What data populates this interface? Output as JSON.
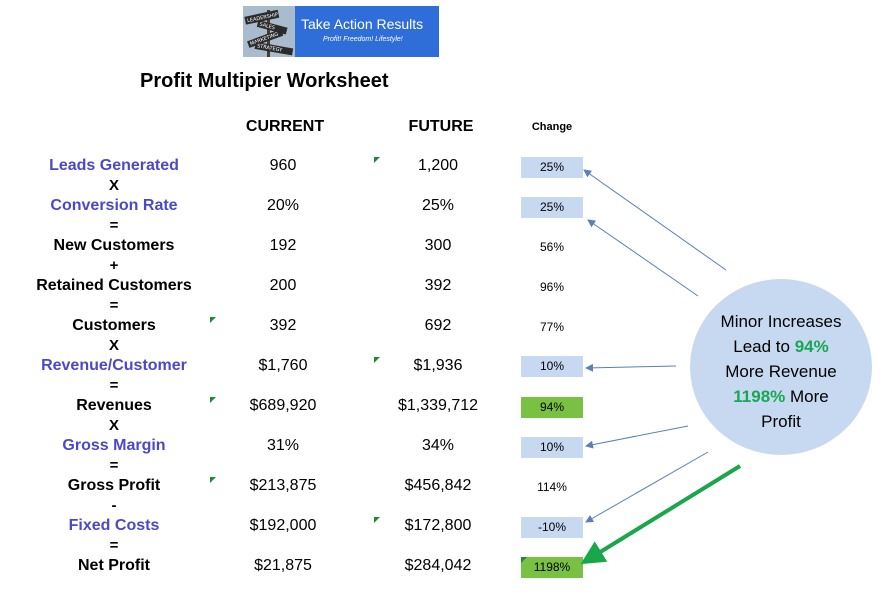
{
  "logo": {
    "title": "Take Action Results",
    "tagline": "Profit! Freedom! Lifestyle!",
    "sign_words": [
      "LEADERSHIP",
      "SALES",
      "MARKETING",
      "STRATEGY"
    ]
  },
  "worksheet": {
    "title": "Profit Multipier Worksheet",
    "headers": {
      "current": "CURRENT",
      "future": "FUTURE",
      "change": "Change"
    },
    "rows": [
      {
        "label": "Leads Generated",
        "current": "960",
        "future": "1,200",
        "change": "25%",
        "op": "X"
      },
      {
        "label": "Conversion Rate",
        "current": "20%",
        "future": "25%",
        "change": "25%",
        "op": "="
      },
      {
        "label": "New Customers",
        "current": "192",
        "future": "300",
        "change": "56%",
        "op": "+"
      },
      {
        "label": "Retained Customers",
        "current": "200",
        "future": "392",
        "change": "96%",
        "op": "="
      },
      {
        "label": "Customers",
        "current": "392",
        "future": "692",
        "change": "77%",
        "op": "X"
      },
      {
        "label": "Revenue/Customer",
        "current": "$1,760",
        "future": "$1,936",
        "change": "10%",
        "op": "="
      },
      {
        "label": "Revenues",
        "current": "$689,920",
        "future": "$1,339,712",
        "change": "94%",
        "op": "X"
      },
      {
        "label": "Gross Margin",
        "current": "31%",
        "future": "34%",
        "change": "10%",
        "op": "="
      },
      {
        "label": "Gross Profit",
        "current": "$213,875",
        "future": "$456,842",
        "change": "114%",
        "op": "-"
      },
      {
        "label": "Fixed Costs",
        "current": "$192,000",
        "future": "$172,800",
        "change": "-10%",
        "op": "="
      },
      {
        "label": "Net Profit",
        "current": "$21,875",
        "future": "$284,042",
        "change": "1198%"
      }
    ]
  },
  "callout": {
    "line1": "Minor Increases",
    "line2_prefix": "Lead to ",
    "line2_highlight": "94%",
    "line3": "More Revenue",
    "line4_highlight": "1198%",
    "line4_suffix": " More",
    "line5": "Profit"
  },
  "colors": {
    "blue_label": "#4b48c9",
    "highlight_cell": "#c6d9f1",
    "green_cell": "#7ac143",
    "green_text": "#16a951",
    "logo_bg": "#2f6ed8"
  }
}
